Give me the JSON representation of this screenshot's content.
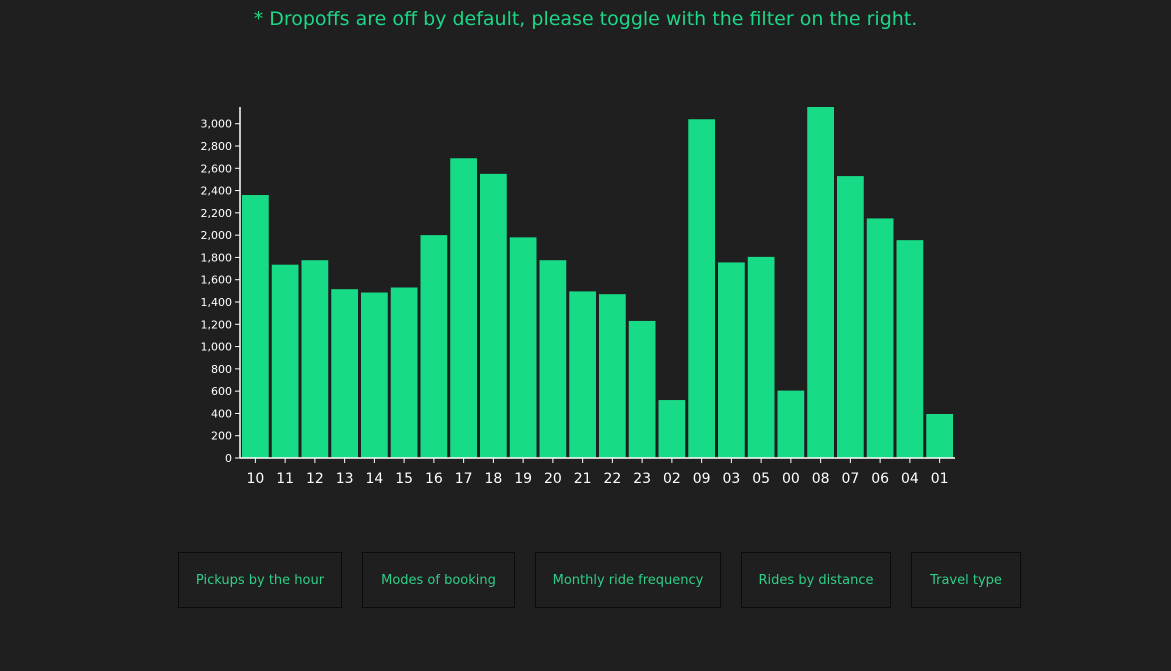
{
  "notice_text": "* Dropoffs are off by default, please toggle with the filter on the right.",
  "colors": {
    "background": "#1f1f1f",
    "bar": "#18db87",
    "axis": "#ffffff",
    "notice": "#1cd787",
    "button_text": "#2ecf87",
    "button_border": "#0c0c0c"
  },
  "chart_data": {
    "type": "bar",
    "categories": [
      "10",
      "11",
      "12",
      "13",
      "14",
      "15",
      "16",
      "17",
      "18",
      "19",
      "20",
      "21",
      "22",
      "23",
      "02",
      "09",
      "03",
      "05",
      "00",
      "08",
      "07",
      "06",
      "04",
      "01"
    ],
    "values": [
      2360,
      1735,
      1775,
      1515,
      1485,
      1530,
      2000,
      2690,
      2550,
      1980,
      1775,
      1495,
      1470,
      1230,
      520,
      3040,
      1755,
      1805,
      605,
      3150,
      2530,
      2150,
      1955,
      395
    ],
    "yticks": [
      "0",
      "200",
      "400",
      "600",
      "800",
      "1,000",
      "1,200",
      "1,400",
      "1,600",
      "1,800",
      "2,000",
      "2,200",
      "2,400",
      "2,600",
      "2,800",
      "3,000"
    ],
    "ylim": [
      0,
      3150
    ],
    "title": "",
    "xlabel": "",
    "ylabel": "",
    "grid": false,
    "legend": "none"
  },
  "buttons": [
    {
      "label": "Pickups by the hour"
    },
    {
      "label": "Modes of booking"
    },
    {
      "label": "Monthly ride frequency"
    },
    {
      "label": "Rides by distance"
    },
    {
      "label": "Travel type"
    }
  ]
}
